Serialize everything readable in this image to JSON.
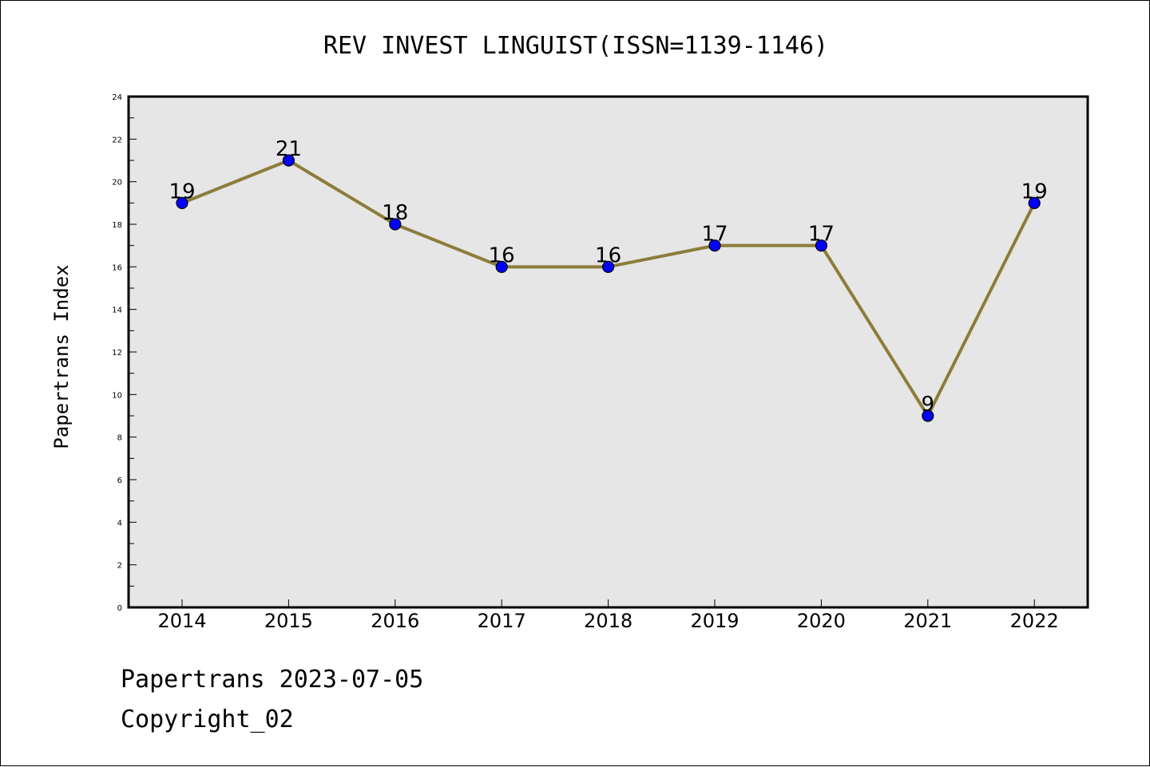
{
  "chart_data": {
    "type": "line",
    "title": "REV INVEST LINGUIST(ISSN=1139-1146)",
    "ylabel": "Papertrans Index",
    "xlabel": "",
    "categories": [
      "2014",
      "2015",
      "2016",
      "2017",
      "2018",
      "2019",
      "2020",
      "2021",
      "2022"
    ],
    "series": [
      {
        "values": [
          19,
          21,
          18,
          16,
          16,
          17,
          17,
          9,
          19
        ]
      }
    ],
    "data_labels": [
      "19",
      "21",
      "18",
      "16",
      "16",
      "17",
      "17",
      "9",
      "19"
    ],
    "ylim": [
      0,
      24
    ],
    "yticks": [
      "0",
      "2",
      "4",
      "6",
      "8",
      "10",
      "12",
      "14",
      "16",
      "18",
      "20",
      "22",
      "24"
    ],
    "grid": false,
    "plot_background": "#e6e6e6",
    "line_color": "#8b7d3a",
    "marker_color": "#0000ff"
  },
  "footer": {
    "date_line": "Papertrans 2023-07-05",
    "copyright_line": "Copyright_02"
  }
}
